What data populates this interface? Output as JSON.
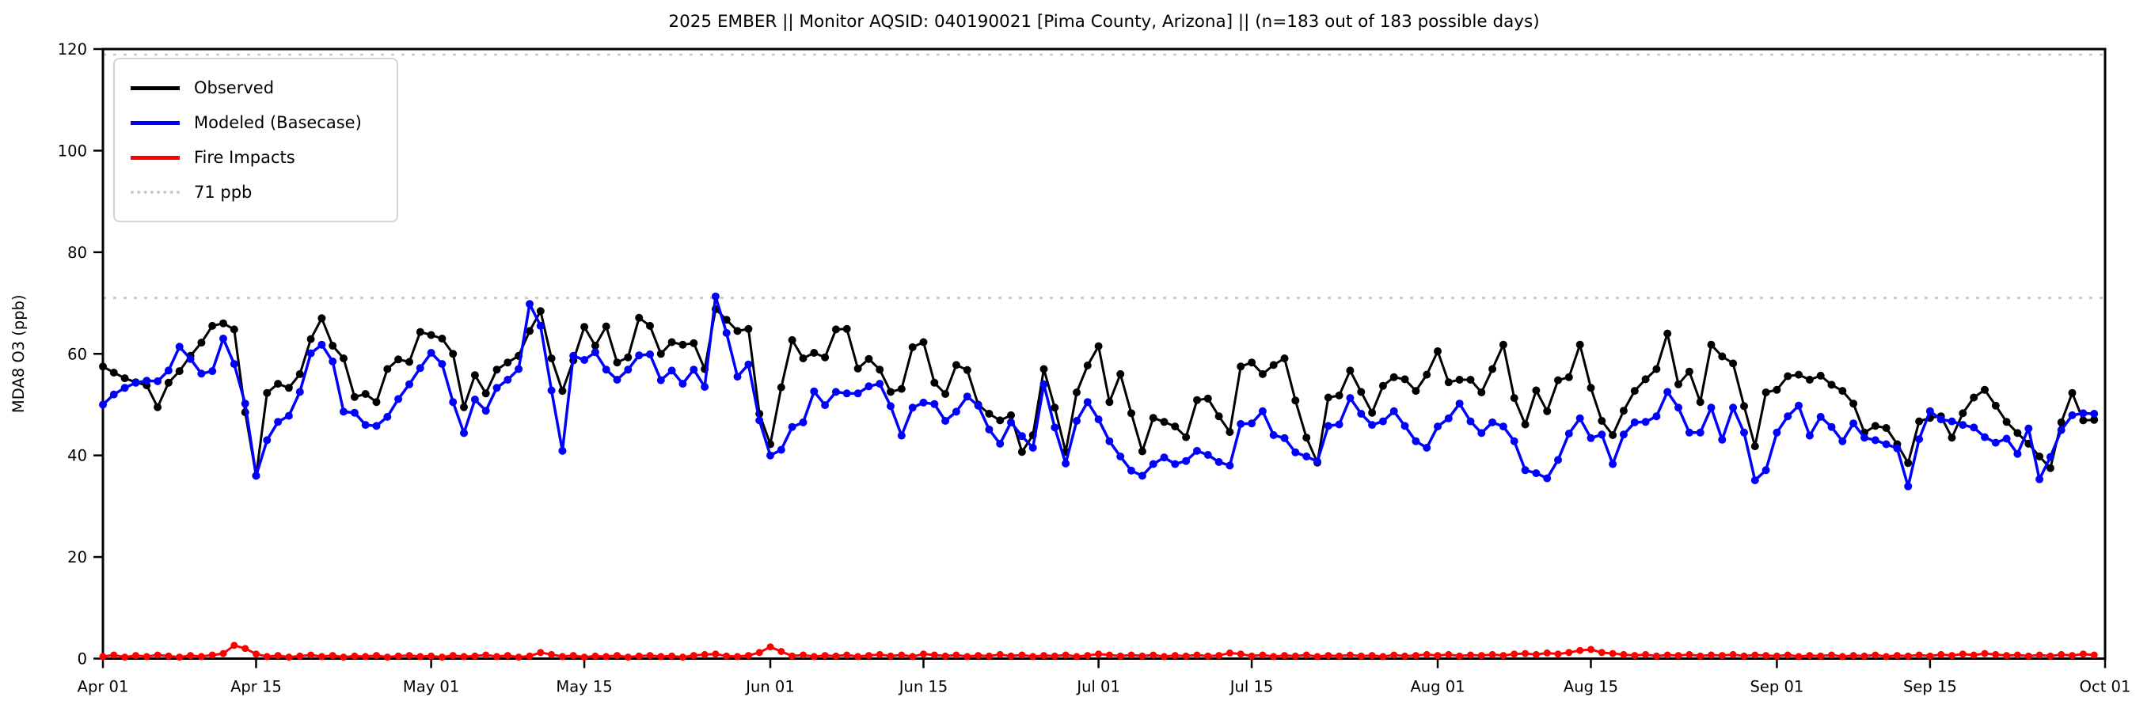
{
  "title": "2025 EMBER || Monitor AQSID: 040190021 [Pima County, Arizona] || (n=183 out of 183 possible days)",
  "chart_data": {
    "type": "line",
    "title": "2025 EMBER || Monitor AQSID: 040190021 [Pima County, Arizona] || (n=183 out of 183 possible days)",
    "xlabel": "",
    "ylabel": "MDA8 O3 (ppb)",
    "ylim": [
      0,
      120
    ],
    "yticks": [
      0,
      20,
      40,
      60,
      80,
      100,
      120
    ],
    "n_days": 183,
    "x_unit": "days from Apr 01 to Oct 01, 2025 (daily values)",
    "grid": false,
    "legend_position": "upper left",
    "xticks": [
      {
        "label": "Apr 01",
        "day": 0
      },
      {
        "label": "Apr 15",
        "day": 14
      },
      {
        "label": "May 01",
        "day": 30
      },
      {
        "label": "May 15",
        "day": 44
      },
      {
        "label": "Jun 01",
        "day": 61
      },
      {
        "label": "Jun 15",
        "day": 75
      },
      {
        "label": "Jul 01",
        "day": 91
      },
      {
        "label": "Jul 15",
        "day": 105
      },
      {
        "label": "Aug 01",
        "day": 122
      },
      {
        "label": "Aug 15",
        "day": 136
      },
      {
        "label": "Sep 01",
        "day": 153
      },
      {
        "label": "Sep 15",
        "day": 167
      },
      {
        "label": "Oct 01",
        "day": 183
      }
    ],
    "threshold": {
      "label": "71 ppb",
      "value": 71,
      "color": "#c9c9c9"
    },
    "top_dotted_value": 118.9,
    "series": [
      {
        "name": "Observed",
        "color": "#000000",
        "values": [
          57.5,
          56.3,
          55.2,
          54.4,
          53.8,
          49.5,
          54.3,
          56.6,
          59.6,
          62.2,
          65.5,
          66,
          64.8,
          48.5,
          36,
          52.3,
          54.1,
          53.3,
          56,
          62.9,
          67,
          61.6,
          59.1,
          51.5,
          52.1,
          50.5,
          57,
          58.9,
          58.4,
          64.3,
          63.7,
          63,
          60,
          49.5,
          55.8,
          52.2,
          56.9,
          58.3,
          59.6,
          64.5,
          68.4,
          59.1,
          52.7,
          58.7,
          65.3,
          61.6,
          65.4,
          58.3,
          59.3,
          67.1,
          65.5,
          60,
          62.3,
          61.8,
          62.1,
          57,
          68.8,
          66.7,
          64.5,
          64.9,
          48.2,
          42.2,
          53.4,
          62.7,
          59.1,
          60.2,
          59.3,
          64.8,
          64.9,
          57.1,
          59,
          56.9,
          52.5,
          53.1,
          61.3,
          62.3,
          54.3,
          52.1,
          57.8,
          56.8,
          50,
          48.2,
          46.9,
          47.9,
          40.7,
          44,
          57,
          49.4,
          40.7,
          52.4,
          57.7,
          61.5,
          50.5,
          56,
          48.3,
          40.8,
          47.4,
          46.6,
          45.7,
          43.6,
          50.9,
          51.2,
          47.7,
          44.6,
          57.5,
          58.3,
          56,
          57.8,
          59.1,
          50.8,
          43.5,
          38.6,
          51.4,
          51.8,
          56.7,
          52.5,
          48.4,
          53.7,
          55.4,
          55,
          52.7,
          55.9,
          60.5,
          54.4,
          54.9,
          54.9,
          52.4,
          57,
          61.8,
          51.3,
          46.1,
          52.8,
          48.7,
          54.8,
          55.4,
          61.8,
          53.3,
          46.8,
          44,
          48.8,
          52.7,
          55,
          57,
          64,
          54,
          56.5,
          50.5,
          61.8,
          59.5,
          58.1,
          49.7,
          41.8,
          52.4,
          52.9,
          55.6,
          55.9,
          54.9,
          55.7,
          53.9,
          52.7,
          50.2,
          44.5,
          45.8,
          45.4,
          42.2,
          38.5,
          46.7,
          47.4,
          47.7,
          43.5,
          48.3,
          51.4,
          52.9,
          49.8,
          46.6,
          44.4,
          42.3,
          39.8,
          37.5,
          46.5,
          52.3,
          46.9,
          47
        ]
      },
      {
        "name": "Modeled (Basecase)",
        "color": "#0000ff",
        "values": [
          50,
          52,
          53.3,
          54.3,
          54.7,
          54.6,
          56.7,
          61.4,
          59,
          56.1,
          56.6,
          63,
          58,
          50.2,
          36,
          43,
          46.6,
          47.8,
          52.5,
          60.1,
          61.8,
          58.5,
          48.6,
          48.4,
          46,
          45.8,
          47.6,
          51.1,
          54,
          57.2,
          60.2,
          58,
          50.5,
          44.4,
          51,
          48.8,
          53.3,
          54.9,
          57,
          69.8,
          65.5,
          52.8,
          40.9,
          59.6,
          58.8,
          60.3,
          56.9,
          54.9,
          56.9,
          59.7,
          59.9,
          54.8,
          56.7,
          54.1,
          56.9,
          53.5,
          71.3,
          64.1,
          55.5,
          57.9,
          46.9,
          40,
          41.1,
          45.6,
          46.5,
          52.6,
          49.9,
          52.5,
          52.2,
          52.2,
          53.6,
          54.1,
          49.7,
          43.9,
          49.4,
          50.4,
          50.1,
          46.8,
          48.6,
          51.6,
          49.8,
          45.1,
          42.3,
          46.5,
          43.8,
          41.5,
          54,
          45.5,
          38.4,
          46.8,
          50.5,
          47.1,
          42.8,
          39.8,
          37,
          36,
          38.3,
          39.6,
          38.3,
          38.9,
          40.9,
          40.1,
          38.7,
          38,
          46.2,
          46.3,
          48.7,
          44,
          43.4,
          40.6,
          39.8,
          38.8,
          45.8,
          46.1,
          51.3,
          48.2,
          46,
          46.7,
          48.7,
          45.8,
          42.8,
          41.5,
          45.7,
          47.3,
          50.2,
          46.7,
          44.4,
          46.5,
          45.7,
          42.8,
          37.1,
          36.5,
          35.5,
          39.1,
          44.3,
          47.3,
          43.4,
          44.1,
          38.3,
          44.1,
          46.5,
          46.6,
          47.7,
          52.5,
          49.4,
          44.5,
          44.5,
          49.4,
          43.1,
          49.4,
          44.5,
          35.1,
          37.1,
          44.5,
          47.7,
          49.8,
          43.9,
          47.6,
          45.6,
          42.8,
          46.3,
          43.5,
          43,
          42.2,
          41.4,
          33.9,
          43.2,
          48.7,
          47.1,
          46.7,
          46,
          45.5,
          43.6,
          42.5,
          43.3,
          40.3,
          45.3,
          35.3,
          39.7,
          45,
          47.9,
          48.3,
          48.2
        ]
      },
      {
        "name": "Fire Impacts",
        "color": "#ff0000",
        "values": [
          0.4,
          0.7,
          0.3,
          0.6,
          0.4,
          0.7,
          0.5,
          0.3,
          0.6,
          0.4,
          0.7,
          1,
          2.6,
          2,
          0.9,
          0.4,
          0.6,
          0.3,
          0.5,
          0.7,
          0.4,
          0.6,
          0.3,
          0.5,
          0.4,
          0.6,
          0.3,
          0.5,
          0.6,
          0.4,
          0.5,
          0.3,
          0.6,
          0.4,
          0.5,
          0.7,
          0.4,
          0.6,
          0.3,
          0.5,
          1.2,
          0.8,
          0.4,
          0.6,
          0.3,
          0.5,
          0.4,
          0.6,
          0.3,
          0.5,
          0.6,
          0.4,
          0.5,
          0.3,
          0.6,
          0.8,
          0.9,
          0.5,
          0.4,
          0.6,
          1.2,
          2.3,
          1.4,
          0.5,
          0.7,
          0.4,
          0.6,
          0.5,
          0.7,
          0.4,
          0.6,
          0.8,
          0.5,
          0.7,
          0.4,
          0.9,
          0.7,
          0.5,
          0.7,
          0.4,
          0.6,
          0.5,
          0.8,
          0.5,
          0.7,
          0.4,
          0.6,
          0.5,
          0.7,
          0.4,
          0.6,
          0.9,
          0.7,
          0.5,
          0.7,
          0.5,
          0.7,
          0.4,
          0.6,
          0.5,
          0.7,
          0.5,
          0.6,
          1.1,
          0.9,
          0.5,
          0.7,
          0.4,
          0.6,
          0.5,
          0.7,
          0.4,
          0.6,
          0.5,
          0.7,
          0.5,
          0.6,
          0.4,
          0.7,
          0.5,
          0.6,
          0.8,
          0.6,
          0.8,
          0.5,
          0.7,
          0.6,
          0.8,
          0.6,
          0.9,
          1,
          0.8,
          1.1,
          0.9,
          1.2,
          1.6,
          1.8,
          1.2,
          1,
          0.8,
          0.6,
          0.8,
          0.5,
          0.7,
          0.6,
          0.8,
          0.5,
          0.7,
          0.6,
          0.8,
          0.5,
          0.7,
          0.6,
          0.5,
          0.7,
          0.4,
          0.6,
          0.5,
          0.7,
          0.4,
          0.6,
          0.5,
          0.7,
          0.4,
          0.6,
          0.5,
          0.7,
          0.5,
          0.8,
          0.6,
          0.9,
          0.7,
          1,
          0.8,
          0.6,
          0.7,
          0.5,
          0.7,
          0.5,
          0.8,
          0.6,
          0.9,
          0.7
        ]
      }
    ]
  },
  "legend": {
    "items": [
      {
        "label": "Observed"
      },
      {
        "label": "Modeled (Basecase)"
      },
      {
        "label": "Fire Impacts"
      },
      {
        "label": "71 ppb"
      }
    ]
  }
}
